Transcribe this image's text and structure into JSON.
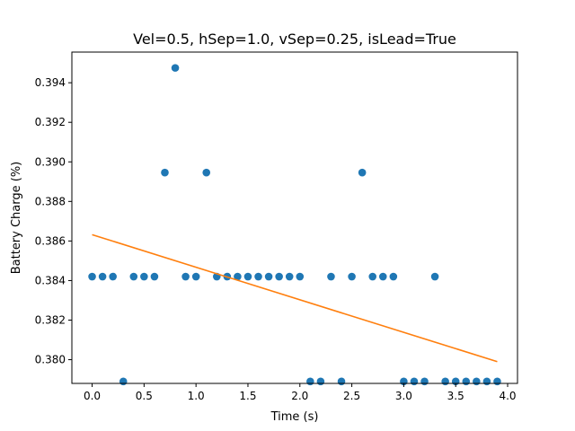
{
  "chart_data": {
    "type": "scatter",
    "title": "Vel=0.5, hSep=1.0, vSep=0.25, isLead=True",
    "xlabel": "Time (s)",
    "ylabel": "Battery Charge (%)",
    "xlim": [
      -0.195,
      4.095
    ],
    "ylim": [
      0.3788,
      0.39555
    ],
    "xticks": [
      0.0,
      0.5,
      1.0,
      1.5,
      2.0,
      2.5,
      3.0,
      3.5,
      4.0
    ],
    "xtick_labels": [
      "0.0",
      "0.5",
      "1.0",
      "1.5",
      "2.0",
      "2.5",
      "3.0",
      "3.5",
      "4.0"
    ],
    "yticks": [
      0.38,
      0.382,
      0.384,
      0.386,
      0.388,
      0.39,
      0.392,
      0.394
    ],
    "ytick_labels": [
      "0.380",
      "0.382",
      "0.384",
      "0.386",
      "0.388",
      "0.390",
      "0.392",
      "0.394"
    ],
    "grid": false,
    "series": [
      {
        "type": "scatter",
        "color": "#1f77b4",
        "x": [
          0.0,
          0.1,
          0.2,
          0.3,
          0.4,
          0.5,
          0.6,
          0.7,
          0.8,
          0.9,
          1.0,
          1.1,
          1.2,
          1.3,
          1.4,
          1.5,
          1.6,
          1.7,
          1.8,
          1.9,
          2.0,
          2.1,
          2.2,
          2.3,
          2.4,
          2.5,
          2.6,
          2.7,
          2.8,
          2.9,
          3.0,
          3.1,
          3.2,
          3.3,
          3.4,
          3.5,
          3.6,
          3.7,
          3.8,
          3.9
        ],
        "y": [
          0.3842,
          0.3842,
          0.3842,
          0.3789,
          0.3842,
          0.3842,
          0.3842,
          0.38946,
          0.39475,
          0.3842,
          0.3842,
          0.38946,
          0.3842,
          0.3842,
          0.3842,
          0.3842,
          0.3842,
          0.3842,
          0.3842,
          0.3842,
          0.3842,
          0.3789,
          0.3789,
          0.3842,
          0.3789,
          0.3842,
          0.38946,
          0.3842,
          0.3842,
          0.3842,
          0.3789,
          0.3789,
          0.3789,
          0.3842,
          0.3789,
          0.3789,
          0.3789,
          0.3789,
          0.3789,
          0.3789
        ]
      },
      {
        "type": "line",
        "color": "#ff7f0e",
        "x": [
          0.0,
          3.9
        ],
        "y": [
          0.38632,
          0.3799
        ]
      }
    ]
  }
}
